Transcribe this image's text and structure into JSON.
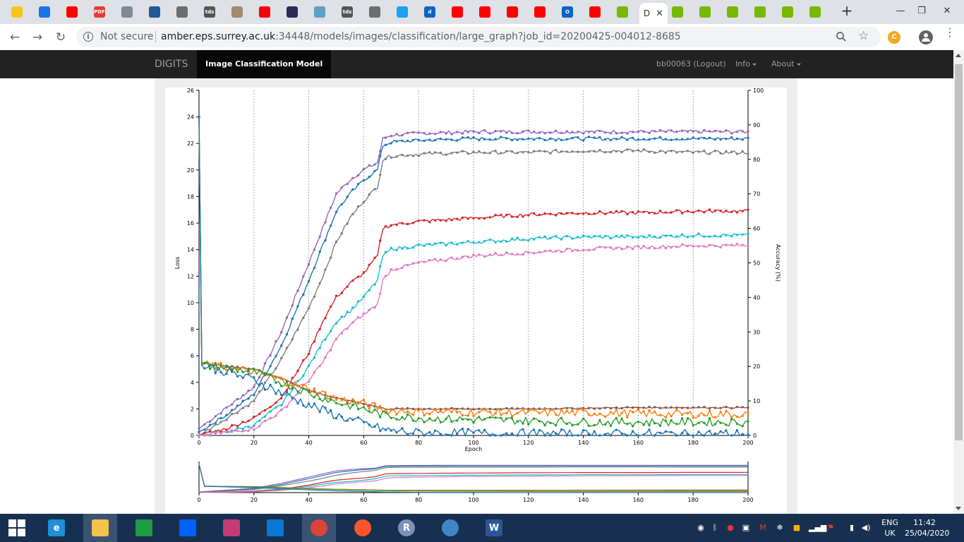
{
  "browser": {
    "active_tab_title": "D",
    "tabs": [
      {
        "icon": "deer-icon",
        "color": "#f9c515",
        "text": ""
      },
      {
        "icon": "cloud-drive-icon",
        "color": "#1a73e8",
        "text": ""
      },
      {
        "icon": "youtube-icon",
        "color": "#ff0000",
        "text": ""
      },
      {
        "icon": "pdf-icon",
        "color": "#e53935",
        "text": "PDF"
      },
      {
        "icon": "dragon-icon",
        "color": "#7c8a99",
        "text": ""
      },
      {
        "icon": "surrey-icon",
        "color": "#1e5a96",
        "text": ""
      },
      {
        "icon": "person-icon",
        "color": "#6d6d6d",
        "text": ""
      },
      {
        "icon": "tds-icon",
        "color": "#555555",
        "text": "tds"
      },
      {
        "icon": "paper-icon",
        "color": "#a58a6d",
        "text": ""
      },
      {
        "icon": "youtube-icon",
        "color": "#ff0000",
        "text": ""
      },
      {
        "icon": "book-icon",
        "color": "#2b2b55",
        "text": ""
      },
      {
        "icon": "grid-icon",
        "color": "#5f9ec9",
        "text": ""
      },
      {
        "icon": "tds-icon",
        "color": "#555555",
        "text": "tds"
      },
      {
        "icon": "person-icon",
        "color": "#6d6d6d",
        "text": ""
      },
      {
        "icon": "twitter-icon",
        "color": "#1da1f2",
        "text": ""
      },
      {
        "icon": "d-icon",
        "color": "#0a66c2",
        "text": "d"
      },
      {
        "icon": "youtube-icon",
        "color": "#ff0000",
        "text": ""
      },
      {
        "icon": "youtube-icon",
        "color": "#ff0000",
        "text": ""
      },
      {
        "icon": "youtube-icon",
        "color": "#ff0000",
        "text": ""
      },
      {
        "icon": "youtube-icon",
        "color": "#ff0000",
        "text": ""
      },
      {
        "icon": "outlook-icon",
        "color": "#0a64c8",
        "text": "O"
      },
      {
        "icon": "youtube-icon",
        "color": "#ff0000",
        "text": ""
      },
      {
        "icon": "nvidia-icon",
        "color": "#76b900",
        "text": ""
      }
    ],
    "tabs_right": [
      {
        "icon": "nvidia-icon",
        "color": "#76b900"
      },
      {
        "icon": "nvidia-icon",
        "color": "#76b900"
      },
      {
        "icon": "nvidia-icon",
        "color": "#76b900"
      },
      {
        "icon": "nvidia-icon",
        "color": "#76b900"
      },
      {
        "icon": "nvidia-icon",
        "color": "#76b900"
      },
      {
        "icon": "nvidia-icon",
        "color": "#76b900"
      }
    ],
    "security_label": "Not secure",
    "url_host": "amber.eps.surrey.ac.uk",
    "url_rest": ":34448/models/images/classification/large_graph?job_id=20200425-004012-8685"
  },
  "navbar": {
    "brand": "DIGITS",
    "active": "Image Classification Model",
    "user": "bb00063 (Logout)",
    "info": "Info",
    "about": "About"
  },
  "chart_data": {
    "type": "line",
    "xlabel": "Epoch",
    "ylabel_left": "Loss",
    "ylabel_right": "Accuracy (%)",
    "xlim": [
      0,
      200
    ],
    "ylim_left": [
      0,
      26
    ],
    "ylim_right": [
      0,
      100
    ],
    "x_ticks": [
      0,
      20,
      40,
      60,
      80,
      100,
      120,
      140,
      160,
      180,
      200
    ],
    "y_left_ticks": [
      0,
      2,
      4,
      6,
      8,
      10,
      12,
      14,
      16,
      18,
      20,
      22,
      24,
      26
    ],
    "y_right_ticks": [
      0,
      10,
      20,
      30,
      40,
      50,
      60,
      70,
      80,
      90,
      100
    ],
    "grid_x": true,
    "series": [
      {
        "axis": "right",
        "color": "#9467bd",
        "x": [
          0,
          10,
          20,
          30,
          40,
          45,
          50,
          55,
          60,
          65,
          67,
          70,
          80,
          100,
          120,
          140,
          160,
          180,
          200
        ],
        "y": [
          2,
          8,
          14,
          30,
          50,
          60,
          70,
          74,
          77,
          79,
          86,
          87,
          87.5,
          88,
          88,
          88,
          88,
          88,
          88
        ]
      },
      {
        "axis": "right",
        "color": "#1f77b4",
        "x": [
          0,
          10,
          20,
          30,
          40,
          45,
          50,
          55,
          60,
          65,
          67,
          70,
          80,
          100,
          120,
          140,
          160,
          180,
          200
        ],
        "y": [
          1,
          6,
          12,
          26,
          45,
          55,
          65,
          70,
          74,
          77,
          84,
          85,
          85.5,
          86,
          86,
          86,
          86,
          86,
          86
        ]
      },
      {
        "axis": "right",
        "color": "#7f7f7f",
        "x": [
          0,
          10,
          20,
          30,
          40,
          45,
          50,
          55,
          60,
          65,
          67,
          70,
          80,
          100,
          120,
          140,
          160,
          180,
          200
        ],
        "y": [
          0,
          5,
          10,
          22,
          37,
          46,
          56,
          63,
          68,
          72,
          80,
          81,
          81.5,
          82,
          82,
          82.5,
          82.5,
          82,
          82
        ]
      },
      {
        "axis": "right",
        "color": "#d62728",
        "x": [
          0,
          10,
          20,
          30,
          40,
          45,
          50,
          55,
          60,
          65,
          67,
          70,
          80,
          100,
          120,
          140,
          160,
          180,
          200
        ],
        "y": [
          0,
          2,
          5,
          11,
          24,
          33,
          40,
          44,
          47,
          52,
          60,
          61,
          62,
          63,
          64,
          64.5,
          64.5,
          65,
          65
        ]
      },
      {
        "axis": "right",
        "color": "#17becf",
        "x": [
          0,
          10,
          20,
          30,
          40,
          45,
          50,
          55,
          60,
          65,
          67,
          70,
          80,
          100,
          120,
          140,
          160,
          180,
          200
        ],
        "y": [
          0,
          1,
          3,
          9,
          20,
          27,
          33,
          36,
          40,
          45,
          52,
          54,
          55,
          56,
          57,
          57.5,
          57.5,
          58,
          58
        ]
      },
      {
        "axis": "right",
        "color": "#e377c2",
        "x": [
          0,
          10,
          20,
          30,
          40,
          45,
          50,
          55,
          60,
          65,
          67,
          70,
          80,
          100,
          120,
          140,
          160,
          180,
          200
        ],
        "y": [
          0,
          1,
          2,
          7,
          16,
          21,
          28,
          32,
          35,
          38,
          45,
          48,
          50,
          52,
          53,
          54,
          54.5,
          55,
          55
        ]
      },
      {
        "axis": "left",
        "color": "#8c564b",
        "x": [
          0,
          1,
          10,
          20,
          30,
          40,
          50,
          60,
          68,
          80,
          100,
          120,
          140,
          160,
          180,
          200
        ],
        "y": [
          24,
          5.5,
          5.2,
          5,
          4.3,
          3.4,
          2.8,
          2.4,
          2,
          2,
          2,
          2,
          2.05,
          2.1,
          2.1,
          2.1
        ]
      },
      {
        "axis": "left",
        "color": "#ff7f0e",
        "x": [
          0,
          1,
          10,
          20,
          30,
          40,
          50,
          60,
          68,
          80,
          100,
          120,
          140,
          160,
          180,
          200
        ],
        "y": [
          24,
          5.4,
          5.1,
          4.8,
          4.2,
          3.5,
          2.8,
          2.4,
          1.9,
          1.8,
          1.75,
          1.7,
          1.7,
          1.65,
          1.6,
          1.6
        ]
      },
      {
        "axis": "left",
        "color": "#2ca02c",
        "x": [
          0,
          1,
          10,
          20,
          30,
          40,
          50,
          60,
          68,
          80,
          100,
          120,
          140,
          160,
          180,
          200
        ],
        "y": [
          24,
          5.3,
          5.1,
          4.8,
          4,
          3.2,
          2.5,
          2,
          1.5,
          1.3,
          1.2,
          1.1,
          1,
          1,
          1,
          1
        ]
      },
      {
        "axis": "left",
        "color": "#1f77b4",
        "x": [
          0,
          1,
          10,
          20,
          30,
          40,
          50,
          60,
          68,
          80,
          100,
          120,
          140,
          160,
          180,
          200
        ],
        "y": [
          24,
          5.3,
          4.8,
          4.2,
          3.2,
          2.3,
          1.5,
          0.9,
          0.4,
          0.2,
          0.15,
          0.12,
          0.1,
          0.1,
          0.1,
          0.1
        ]
      }
    ]
  },
  "taskbar": {
    "apps": [
      {
        "name": "ie",
        "color": "#1f8fd6",
        "text": "e"
      },
      {
        "name": "file-explorer",
        "color": "#f2c14e",
        "text": ""
      },
      {
        "name": "store",
        "color": "#1d9d42",
        "text": ""
      },
      {
        "name": "dropbox",
        "color": "#0061fe",
        "text": ""
      },
      {
        "name": "paint",
        "color": "#c53b74",
        "text": ""
      },
      {
        "name": "onedrive",
        "color": "#0a78d4",
        "text": ""
      },
      {
        "name": "chrome",
        "color": "#db4437",
        "text": ""
      },
      {
        "name": "brave",
        "color": "#fb542b",
        "text": ""
      },
      {
        "name": "r",
        "color": "#7a93b7",
        "text": "R"
      },
      {
        "name": "globe",
        "color": "#3f86c6",
        "text": ""
      },
      {
        "name": "word",
        "color": "#2b579a",
        "text": "W"
      }
    ],
    "lang_top": "ENG",
    "lang_bottom": "UK",
    "time": "11:42",
    "date": "25/04/2020"
  }
}
